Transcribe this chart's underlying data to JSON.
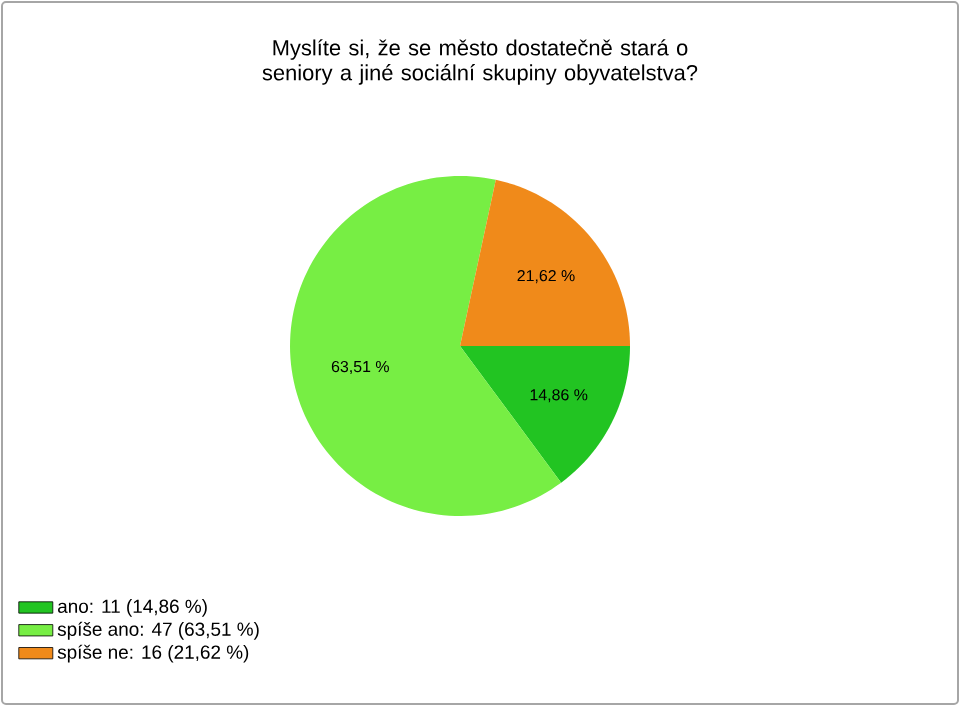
{
  "chart_data": {
    "type": "pie",
    "title": "Myslíte si, že se město dostatečně stará o seniory a jiné sociální skupiny obyvatelstva?",
    "categories": [
      "ano: 11 (14,86 %)",
      "spíše ano: 47 (63,51 %)",
      "spíše ne: 16 (21,62 %)"
    ],
    "values": [
      14.86,
      63.51,
      21.62
    ],
    "value_labels": [
      "14,86 %",
      "63,51 %",
      "21,62 %"
    ],
    "colors": [
      "#22c422",
      "#77ee44",
      "#f08a1a"
    ],
    "legend": "bottom left"
  }
}
